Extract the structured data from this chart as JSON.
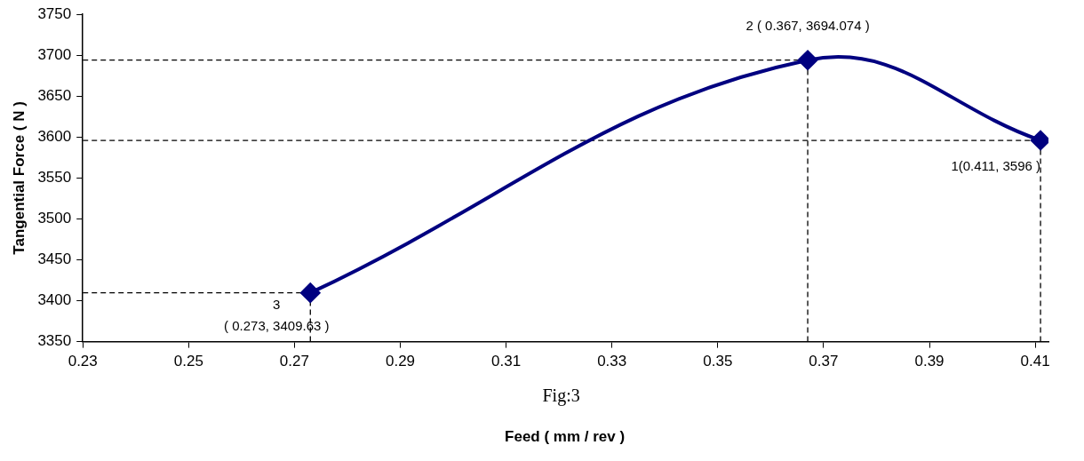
{
  "chart_data": {
    "type": "line",
    "xlabel": "Feed ( mm / rev )",
    "ylabel": "Tangential Force ( N )",
    "x": [
      0.273,
      0.367,
      0.411
    ],
    "series": [
      {
        "color": "#000080",
        "values": [
          3409.63,
          3694.074,
          3596
        ]
      }
    ],
    "xlim": [
      0.23,
      0.4125
    ],
    "xticks": [
      0.23,
      0.25,
      0.27,
      0.29,
      0.31,
      0.33,
      0.35,
      0.37,
      0.39,
      0.41
    ],
    "ylim": [
      3350,
      3750
    ],
    "yticks": [
      3350,
      3400,
      3450,
      3500,
      3550,
      3600,
      3650,
      3700,
      3750
    ],
    "grid": false,
    "legend": false,
    "marker": "diamond",
    "line_style": "solid",
    "ref_lines": [
      {
        "axis": "y",
        "value": 3694.074,
        "color": "#000000",
        "line_style": "dashed"
      },
      {
        "axis": "y",
        "value": 3596,
        "color": "#000000",
        "line_style": "dashed"
      },
      {
        "axis": "y",
        "value": 3409.63,
        "color": "#000000",
        "line_style": "dashed"
      },
      {
        "axis": "x",
        "value": 0.273,
        "color": "#000000",
        "line_style": "dashed"
      },
      {
        "axis": "x",
        "value": 0.367,
        "color": "#000000",
        "line_style": "dashed"
      },
      {
        "axis": "x",
        "value": 0.411,
        "color": "#000000",
        "line_style": "dashed"
      }
    ],
    "annotations": [
      {
        "text": "2 ( 0.367, 3694.074 )",
        "x": 0.367,
        "y": 3694.074
      },
      {
        "text": "1(0.411, 3596 )",
        "x": 0.411,
        "y": 3596
      },
      {
        "text": "3\n( 0.273, 3409.63 )",
        "x": 0.273,
        "y": 3409.63
      },
      "Fig:3"
    ]
  }
}
